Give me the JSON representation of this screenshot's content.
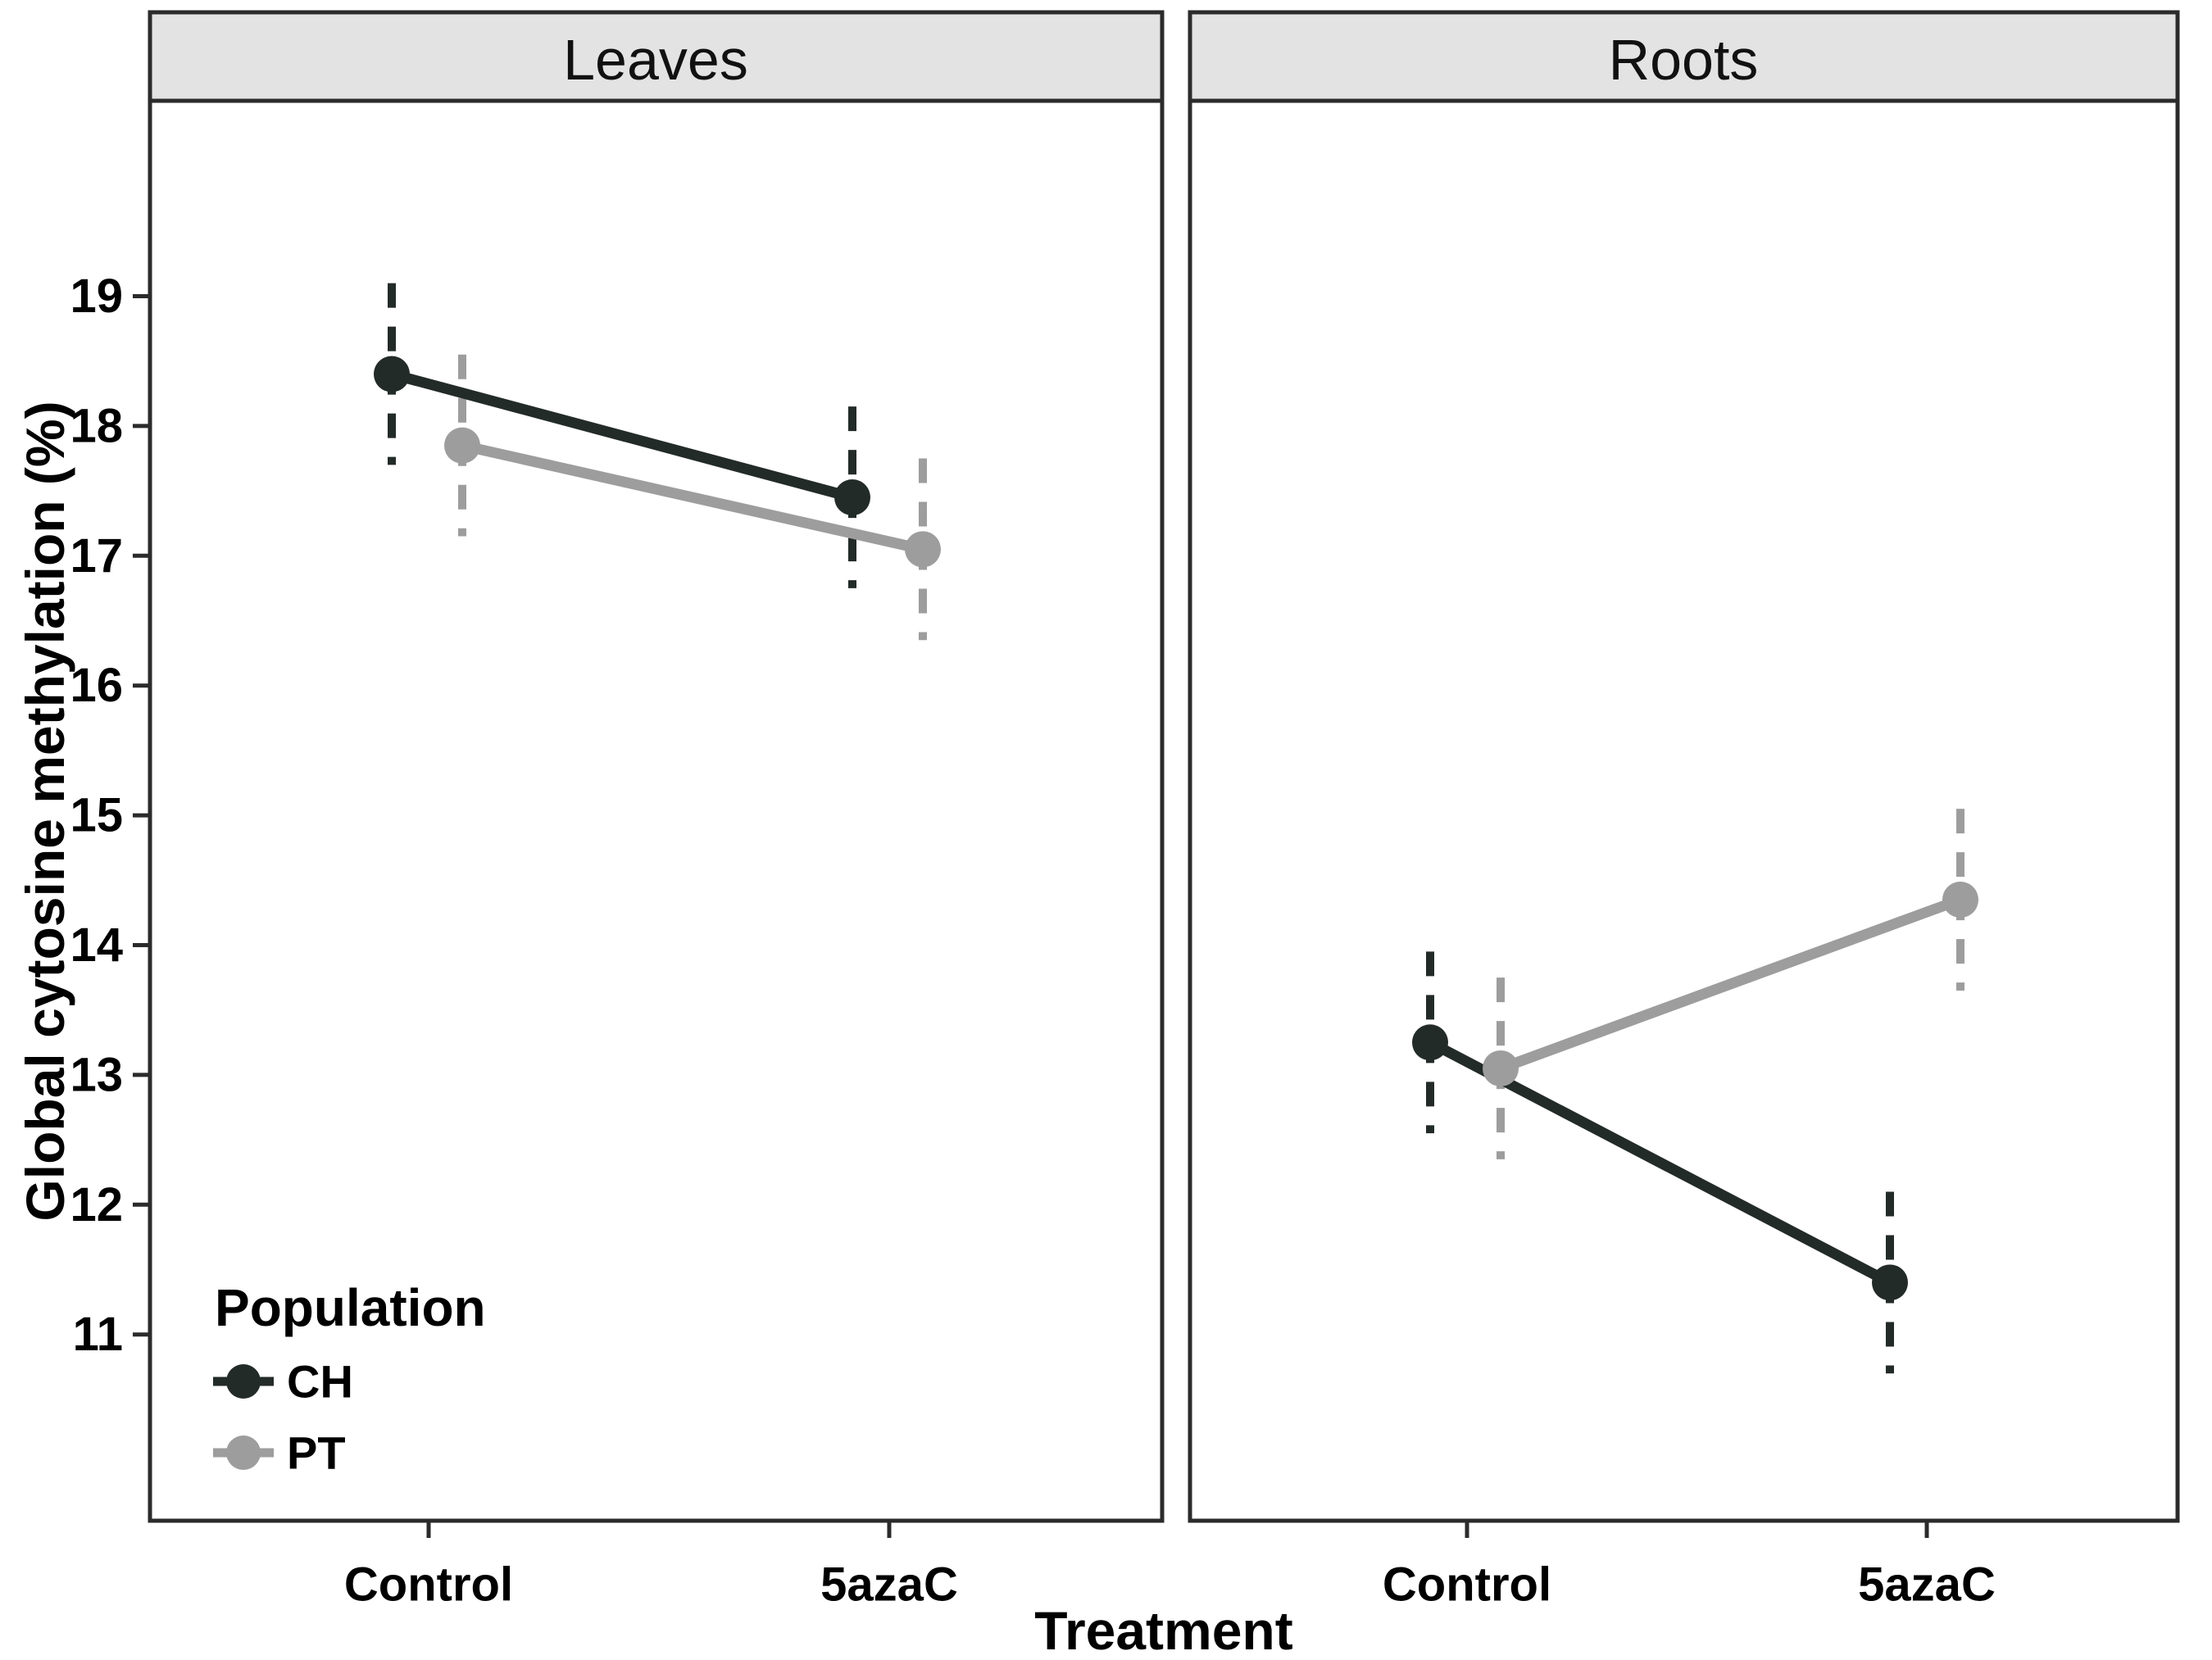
{
  "chart_data": {
    "type": "line",
    "title": "",
    "facets": [
      "Leaves",
      "Roots"
    ],
    "x_categories": [
      "Control",
      "5azaC"
    ],
    "xlabel": "Treatment",
    "ylabel": "Global cytosine methylation (%)",
    "y_ticks": [
      11,
      12,
      13,
      14,
      15,
      16,
      17,
      18,
      19
    ],
    "ylim": [
      9.5,
      20.5
    ],
    "grid": false,
    "error_bar_style": "dashed",
    "legend": {
      "title": "Population",
      "position": "inside-bottom-left",
      "entries": [
        {
          "name": "CH",
          "color": "#232b28"
        },
        {
          "name": "PT",
          "color": "#9d9d9d"
        }
      ]
    },
    "series": [
      {
        "name": "CH",
        "facet": "Leaves",
        "color": "#232b28",
        "values": [
          {
            "x": "Control",
            "y": 18.4,
            "ci_lo": 17.7,
            "ci_hi": 19.1
          },
          {
            "x": "5azaC",
            "y": 17.45,
            "ci_lo": 16.75,
            "ci_hi": 18.15
          }
        ]
      },
      {
        "name": "PT",
        "facet": "Leaves",
        "color": "#9d9d9d",
        "values": [
          {
            "x": "Control",
            "y": 17.85,
            "ci_lo": 17.15,
            "ci_hi": 18.55
          },
          {
            "x": "5azaC",
            "y": 17.05,
            "ci_lo": 16.35,
            "ci_hi": 17.75
          }
        ]
      },
      {
        "name": "CH",
        "facet": "Roots",
        "color": "#232b28",
        "values": [
          {
            "x": "Control",
            "y": 13.25,
            "ci_lo": 12.55,
            "ci_hi": 13.95
          },
          {
            "x": "5azaC",
            "y": 11.4,
            "ci_lo": 10.7,
            "ci_hi": 12.1
          }
        ]
      },
      {
        "name": "PT",
        "facet": "Roots",
        "color": "#9d9d9d",
        "values": [
          {
            "x": "Control",
            "y": 13.05,
            "ci_lo": 12.35,
            "ci_hi": 13.75
          },
          {
            "x": "5azaC",
            "y": 14.35,
            "ci_lo": 13.65,
            "ci_hi": 15.05
          }
        ]
      }
    ],
    "style": {
      "panel_border_color": "#2b2b2b",
      "strip_fill": "#e3e3e3",
      "background": "#ffffff"
    }
  }
}
